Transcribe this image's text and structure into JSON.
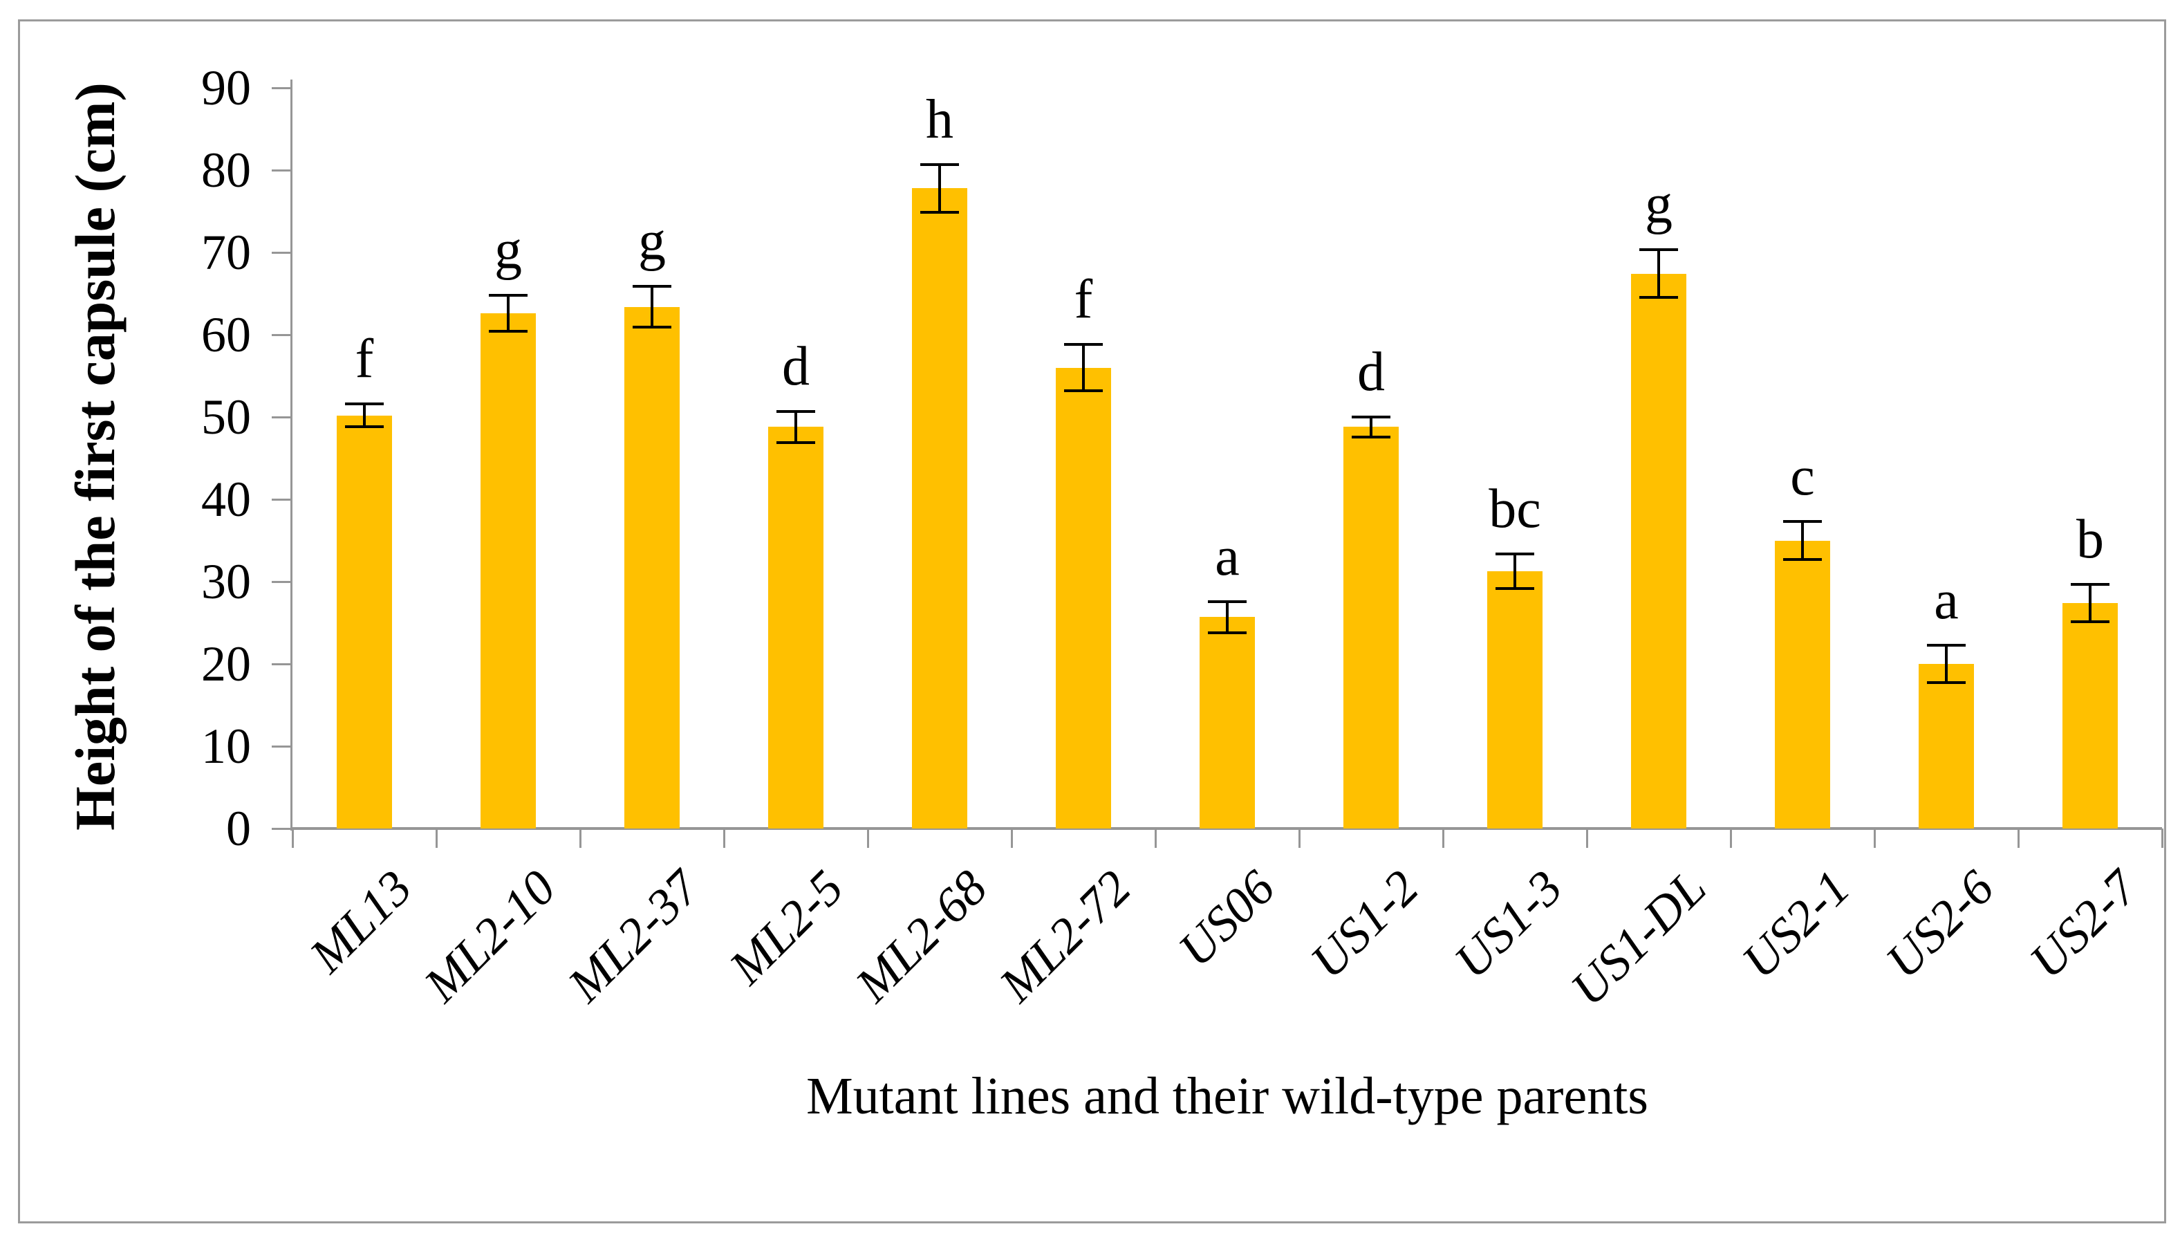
{
  "figure": {
    "background": "#FFFFFF",
    "border_color": "#9B9B9B"
  },
  "chart_data": {
    "type": "bar",
    "title": "",
    "xlabel": "Mutant lines and their wild-type parents",
    "ylabel": "Height of the first capsule (cm)",
    "ylim": [
      0,
      90
    ],
    "ytick_step": 10,
    "yticks": [
      0,
      10,
      20,
      30,
      40,
      50,
      60,
      70,
      80,
      90
    ],
    "grid": false,
    "legend_position": "none",
    "bar_color": "#FFC000",
    "axis_color": "#969696",
    "error_bar_color": "#000000",
    "categories": [
      "ML13",
      "ML2-10",
      "ML2-37",
      "ML2-5",
      "ML2-68",
      "ML2-72",
      "US06",
      "US1-2",
      "US1-3",
      "US1-DL",
      "US2-1",
      "US2-6",
      "US2-7"
    ],
    "series": [
      {
        "name": "Height of the first capsule (cm)",
        "values": [
          50.2,
          62.6,
          63.4,
          48.8,
          77.8,
          56.0,
          25.7,
          48.8,
          31.3,
          67.4,
          35.0,
          20.0,
          27.4
        ],
        "errors": [
          1.4,
          2.2,
          2.5,
          1.9,
          2.9,
          2.8,
          1.9,
          1.2,
          2.1,
          2.9,
          2.3,
          2.3,
          2.3
        ],
        "significance_letters": [
          "f",
          "g",
          "g",
          "d",
          "h",
          "f",
          "a",
          "d",
          "bc",
          "g",
          "c",
          "a",
          "b"
        ]
      }
    ]
  }
}
